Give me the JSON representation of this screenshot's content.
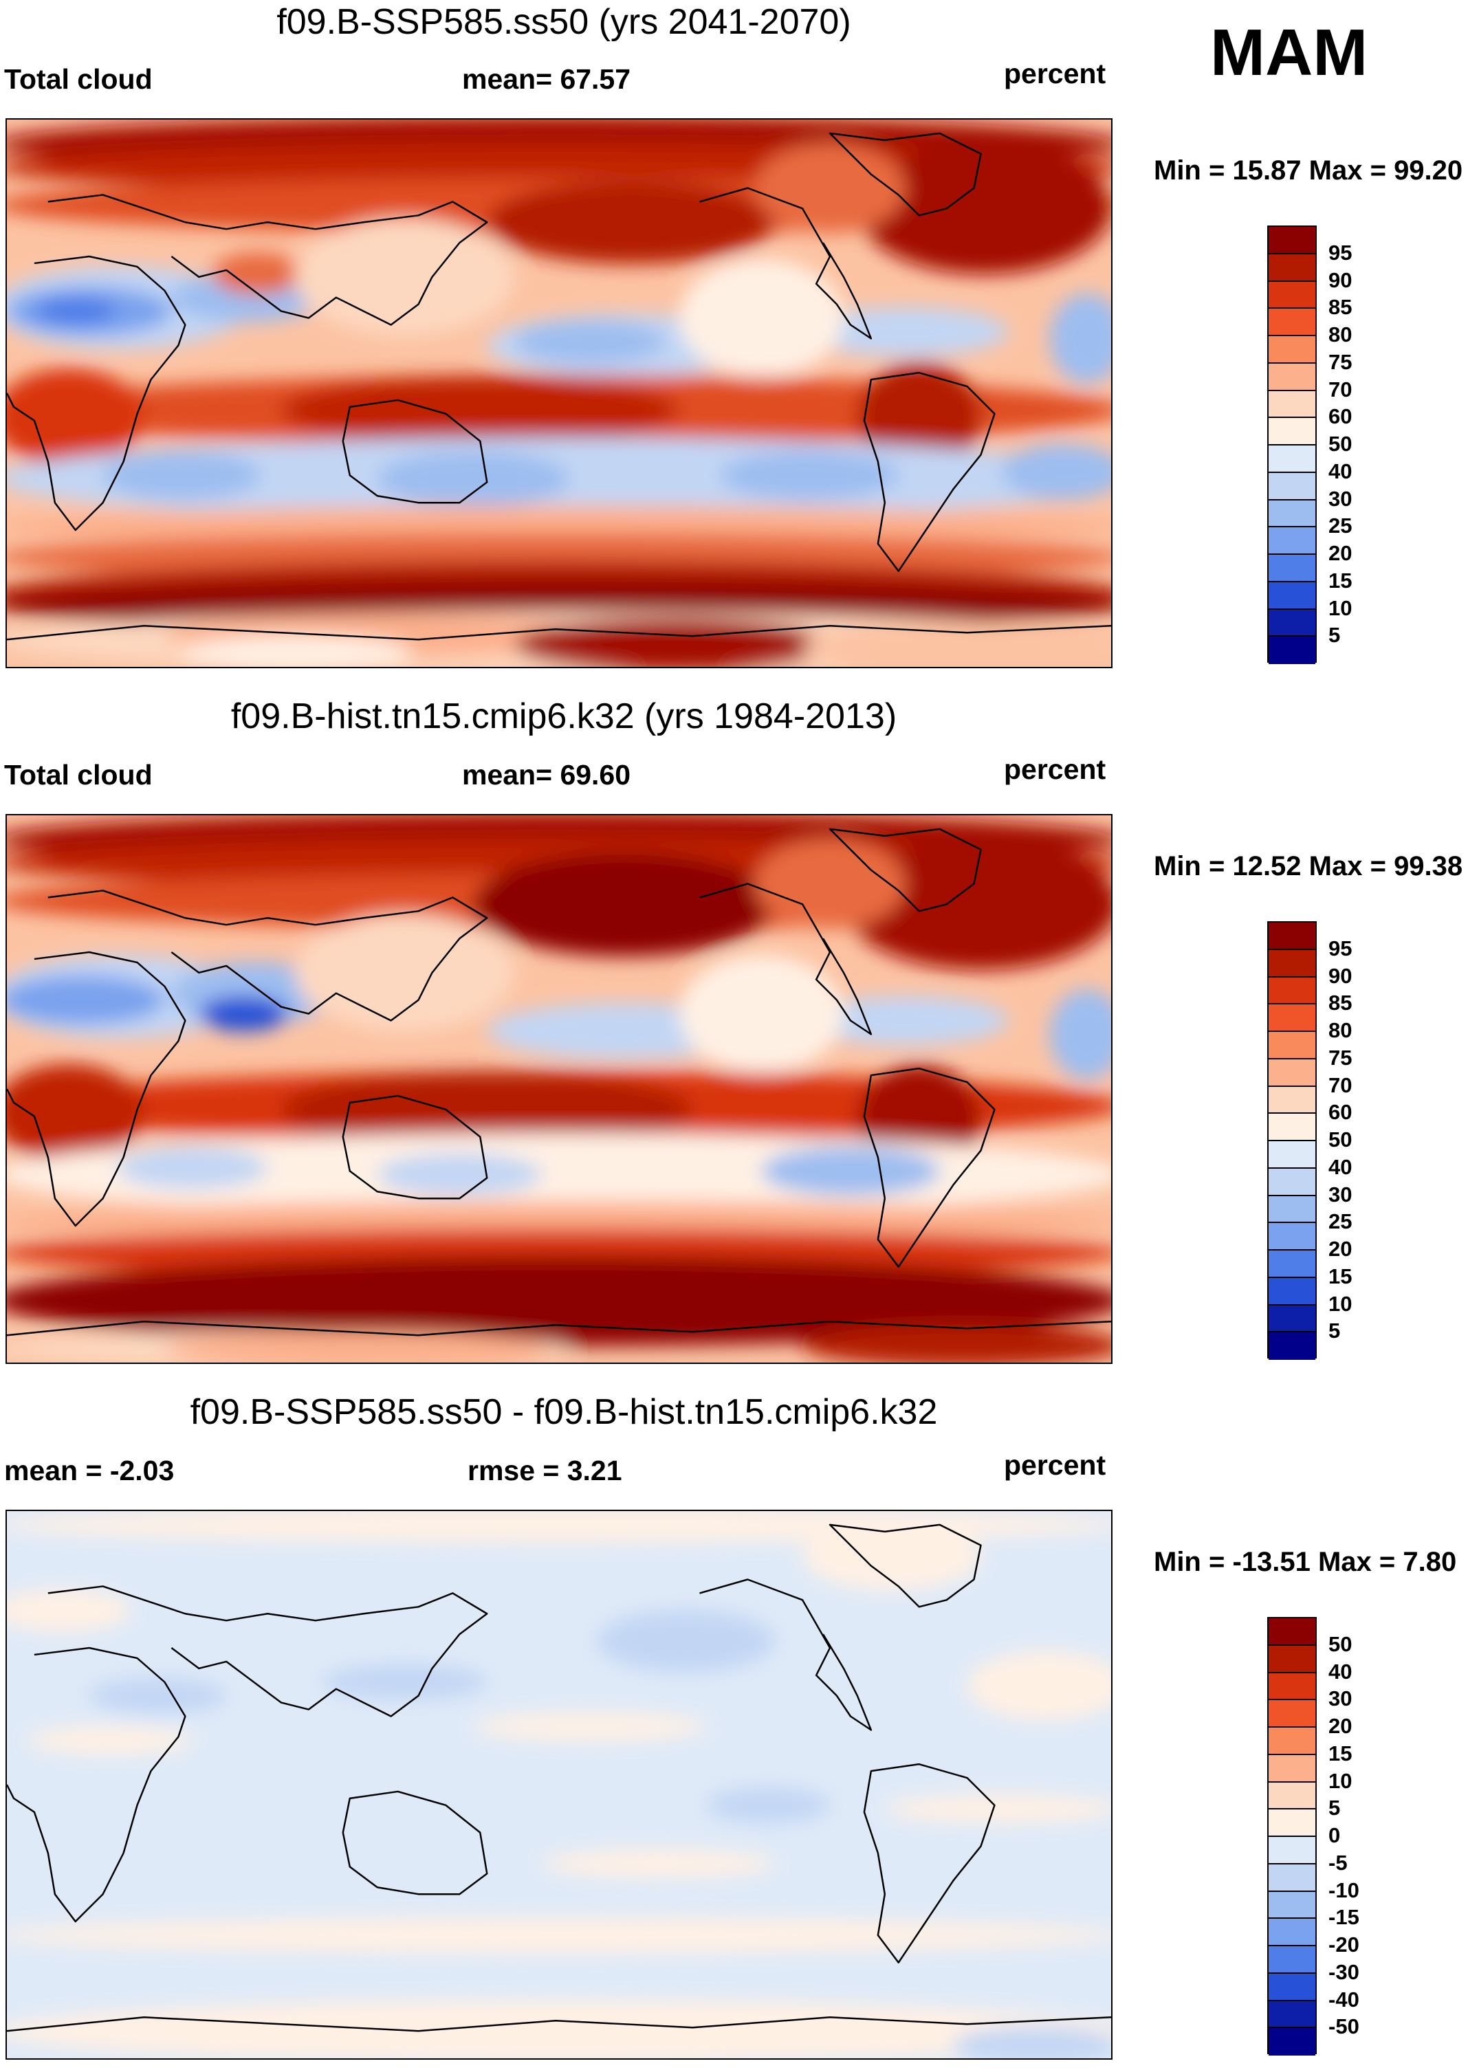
{
  "season": "MAM",
  "panels": [
    {
      "title": "f09.B-SSP585.ss50 (yrs 2041-2070)",
      "left_label": "Total cloud",
      "center_label": "mean=  67.57",
      "right_label": "percent",
      "minmax": "Min =  15.87 Max =  99.20",
      "colorbar_labels": [
        "95",
        "90",
        "85",
        "80",
        "75",
        "70",
        "60",
        "50",
        "40",
        "30",
        "25",
        "20",
        "15",
        "10",
        "5"
      ],
      "colorbar_colors": [
        "#8b0000",
        "#b31b00",
        "#d93510",
        "#f0552a",
        "#f98a5c",
        "#fcb08c",
        "#fdd8c0",
        "#fff0e4",
        "#dfeaf8",
        "#c2d6f4",
        "#9dbdf0",
        "#7aa2ee",
        "#4f7ee8",
        "#2751d6",
        "#0d1ea8",
        "#00008a"
      ],
      "fields": {
        "base": "#fcc3a3",
        "blobs": [
          [
            "#a30e00",
            0,
            0,
            1610,
            70
          ],
          [
            "#c02000",
            0,
            40,
            1610,
            60
          ],
          [
            "#e04d20",
            0,
            90,
            1610,
            70
          ],
          [
            "#b31b00",
            720,
            95,
            380,
            110
          ],
          [
            "#a30e00",
            1260,
            40,
            330,
            180
          ],
          [
            "#e86b40",
            1110,
            40,
            180,
            120
          ],
          [
            "#c3d6f4",
            0,
            220,
            330,
            110
          ],
          [
            "#7aa2ee",
            20,
            250,
            200,
            60
          ],
          [
            "#4f7ee8",
            60,
            265,
            80,
            30
          ],
          [
            "#9dbdf0",
            260,
            230,
            180,
            60
          ],
          [
            "#e86b40",
            320,
            200,
            90,
            50
          ],
          [
            "#fdd8c0",
            440,
            150,
            280,
            160
          ],
          [
            "#c2d6f4",
            720,
            290,
            360,
            80
          ],
          [
            "#9dbdf0",
            760,
            300,
            180,
            50
          ],
          [
            "#c2d6f4",
            1180,
            280,
            260,
            60
          ],
          [
            "#9dbdf0",
            1540,
            260,
            70,
            120
          ],
          [
            "#fff0e4",
            1000,
            210,
            200,
            160
          ],
          [
            "#e04d20",
            0,
            380,
            1610,
            90
          ],
          [
            "#c02000",
            420,
            380,
            540,
            90
          ],
          [
            "#b31b00",
            1260,
            360,
            140,
            150
          ],
          [
            "#d93510",
            0,
            370,
            180,
            130
          ],
          [
            "#c2d6f4",
            0,
            470,
            1610,
            110
          ],
          [
            "#9dbdf0",
            160,
            490,
            190,
            60
          ],
          [
            "#9dbdf0",
            560,
            490,
            240,
            70
          ],
          [
            "#9dbdf0",
            1060,
            490,
            220,
            60
          ],
          [
            "#9dbdf0",
            1470,
            480,
            140,
            70
          ],
          [
            "#fcb08c",
            0,
            570,
            1610,
            50
          ],
          [
            "#e86b40",
            0,
            610,
            1610,
            60
          ],
          [
            "#b31b00",
            0,
            650,
            1610,
            90
          ],
          [
            "#8b0000",
            0,
            680,
            1610,
            60
          ],
          [
            "#fdd8c0",
            0,
            725,
            1610,
            75
          ],
          [
            "#fcb08c",
            250,
            730,
            600,
            50
          ],
          [
            "#fff0e4",
            270,
            760,
            300,
            40
          ],
          [
            "#a30e00",
            760,
            735,
            420,
            65
          ],
          [
            "#fcc3a3",
            1180,
            740,
            430,
            60
          ]
        ]
      }
    },
    {
      "title": "f09.B-hist.tn15.cmip6.k32 (yrs 1984-2013)",
      "left_label": "Total cloud",
      "center_label": "mean=  69.60",
      "right_label": "percent",
      "minmax": "Min =  12.52 Max =  99.38",
      "colorbar_labels": [
        "95",
        "90",
        "85",
        "80",
        "75",
        "70",
        "60",
        "50",
        "40",
        "30",
        "25",
        "20",
        "15",
        "10",
        "5"
      ],
      "colorbar_colors": [
        "#8b0000",
        "#b31b00",
        "#d93510",
        "#f0552a",
        "#f98a5c",
        "#fcb08c",
        "#fdd8c0",
        "#fff0e4",
        "#dfeaf8",
        "#c2d6f4",
        "#9dbdf0",
        "#7aa2ee",
        "#4f7ee8",
        "#2751d6",
        "#0d1ea8",
        "#00008a"
      ],
      "fields": {
        "base": "#fcc3a3",
        "blobs": [
          [
            "#a30e00",
            0,
            0,
            1610,
            70
          ],
          [
            "#c02000",
            0,
            40,
            1610,
            60
          ],
          [
            "#e04d20",
            0,
            90,
            1610,
            70
          ],
          [
            "#8b0000",
            700,
            60,
            400,
            140
          ],
          [
            "#a30e00",
            1240,
            40,
            360,
            180
          ],
          [
            "#e86b40",
            1110,
            40,
            180,
            120
          ],
          [
            "#c3d6f4",
            0,
            210,
            330,
            110
          ],
          [
            "#7aa2ee",
            10,
            240,
            200,
            60
          ],
          [
            "#9dbdf0",
            260,
            220,
            200,
            80
          ],
          [
            "#2751d6",
            300,
            270,
            90,
            40
          ],
          [
            "#fdd8c0",
            440,
            150,
            280,
            160
          ],
          [
            "#c2d6f4",
            720,
            280,
            360,
            70
          ],
          [
            "#c2d6f4",
            1180,
            270,
            260,
            60
          ],
          [
            "#9dbdf0",
            1540,
            260,
            70,
            120
          ],
          [
            "#fff0e4",
            1000,
            210,
            200,
            160
          ],
          [
            "#d93510",
            0,
            380,
            1610,
            90
          ],
          [
            "#b31b00",
            420,
            380,
            560,
            100
          ],
          [
            "#a30e00",
            1260,
            370,
            140,
            150
          ],
          [
            "#c02000",
            0,
            370,
            180,
            130
          ],
          [
            "#fff0e4",
            0,
            470,
            1610,
            110
          ],
          [
            "#c2d6f4",
            180,
            490,
            180,
            50
          ],
          [
            "#9dbdf0",
            1120,
            490,
            220,
            60
          ],
          [
            "#c2d6f4",
            560,
            500,
            200,
            50
          ],
          [
            "#fcb08c",
            0,
            570,
            1610,
            50
          ],
          [
            "#d93510",
            0,
            610,
            1610,
            60
          ],
          [
            "#8b0000",
            0,
            650,
            1610,
            120
          ],
          [
            "#fdd8c0",
            0,
            760,
            800,
            40
          ],
          [
            "#fcb08c",
            250,
            760,
            520,
            40
          ],
          [
            "#b31b00",
            1180,
            750,
            430,
            50
          ]
        ]
      }
    },
    {
      "title": "f09.B-SSP585.ss50 - f09.B-hist.tn15.cmip6.k32",
      "left_label": "mean =  -2.03",
      "center_label": "rmse =    3.21",
      "right_label": "percent",
      "minmax": "Min = -13.51 Max =    7.80",
      "colorbar_labels": [
        "50",
        "40",
        "30",
        "20",
        "15",
        "10",
        "5",
        "0",
        "-5",
        "-10",
        "-15",
        "-20",
        "-30",
        "-40",
        "-50"
      ],
      "colorbar_colors": [
        "#8b0000",
        "#b31b00",
        "#d93510",
        "#f0552a",
        "#f98a5c",
        "#fcb08c",
        "#fdd8c0",
        "#fff0e4",
        "#dfeaf8",
        "#c2d6f4",
        "#9dbdf0",
        "#7aa2ee",
        "#4f7ee8",
        "#2751d6",
        "#0d1ea8",
        "#00008a"
      ],
      "fields": {
        "base": "#dfeaf8",
        "blobs": [
          [
            "#fff0e4",
            0,
            0,
            1610,
            40
          ],
          [
            "#fff0e4",
            1180,
            20,
            220,
            90
          ],
          [
            "#fff0e4",
            0,
            120,
            160,
            50
          ],
          [
            "#fff0e4",
            1420,
            210,
            190,
            90
          ],
          [
            "#c2d6f4",
            880,
            150,
            220,
            80
          ],
          [
            "#c2d6f4",
            140,
            250,
            160,
            40
          ],
          [
            "#c2d6f4",
            480,
            230,
            200,
            40
          ],
          [
            "#fff0e4",
            50,
            320,
            200,
            30
          ],
          [
            "#fff0e4",
            700,
            300,
            300,
            30
          ],
          [
            "#fff0e4",
            800,
            500,
            300,
            30
          ],
          [
            "#fff0e4",
            1300,
            420,
            300,
            30
          ],
          [
            "#c2d6f4",
            1040,
            410,
            140,
            40
          ],
          [
            "#fff0e4",
            0,
            600,
            1610,
            40
          ],
          [
            "#fff0e4",
            0,
            720,
            1610,
            80
          ],
          [
            "#c2d6f4",
            1400,
            760,
            200,
            40
          ]
        ]
      }
    }
  ]
}
